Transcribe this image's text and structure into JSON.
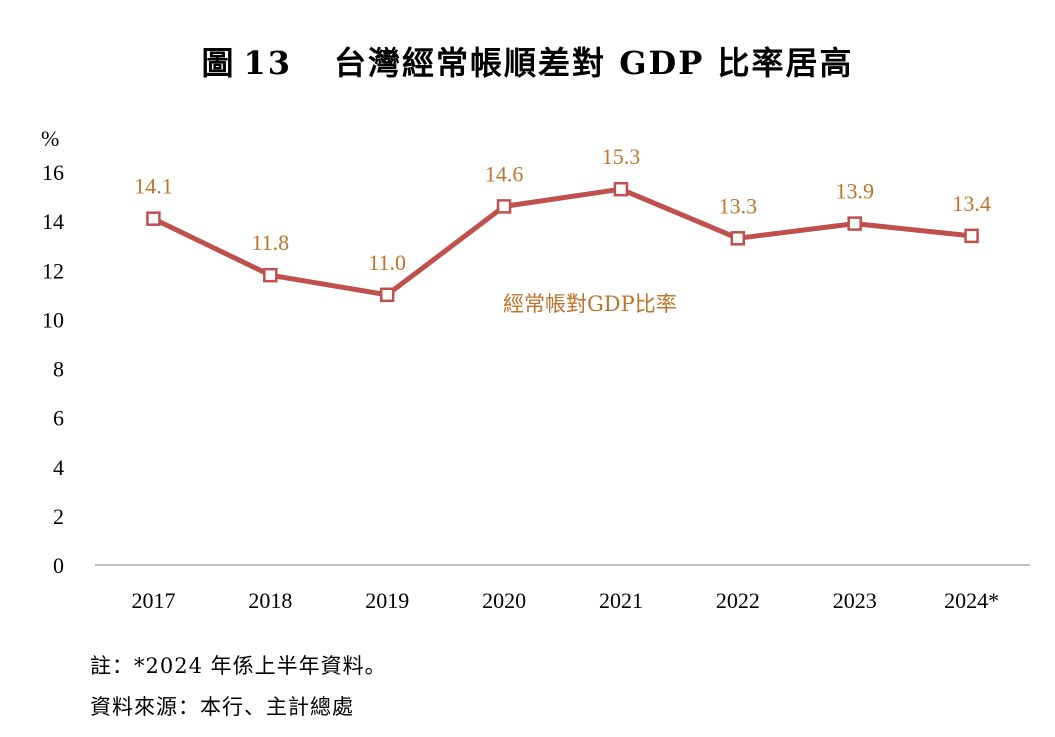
{
  "title": {
    "prefix": "圖",
    "number": "13",
    "text": "台灣經常帳順差對 GDP 比率居高"
  },
  "footnotes": {
    "note": "註：*2024 年係上半年資料。",
    "source": "資料來源：本行、主計總處"
  },
  "colors": {
    "series_line": "#c0504d",
    "label_text": "#c0732b",
    "axis": "#bfbfbf"
  },
  "chart_data": {
    "type": "line",
    "unit": "%",
    "categories": [
      "2017",
      "2018",
      "2019",
      "2020",
      "2021",
      "2022",
      "2023",
      "2024*"
    ],
    "series": [
      {
        "name": "經常帳對GDP比率",
        "values": [
          14.1,
          11.8,
          11.0,
          14.6,
          15.3,
          13.3,
          13.9,
          13.4
        ]
      }
    ],
    "data_labels": [
      "14.1",
      "11.8",
      "11.0",
      "14.6",
      "15.3",
      "13.3",
      "13.9",
      "13.4"
    ],
    "ylim": [
      0,
      16
    ],
    "yticks": [
      "0",
      "2",
      "4",
      "6",
      "8",
      "10",
      "12",
      "14",
      "16"
    ],
    "grid": false,
    "marker": "hollow-square"
  }
}
